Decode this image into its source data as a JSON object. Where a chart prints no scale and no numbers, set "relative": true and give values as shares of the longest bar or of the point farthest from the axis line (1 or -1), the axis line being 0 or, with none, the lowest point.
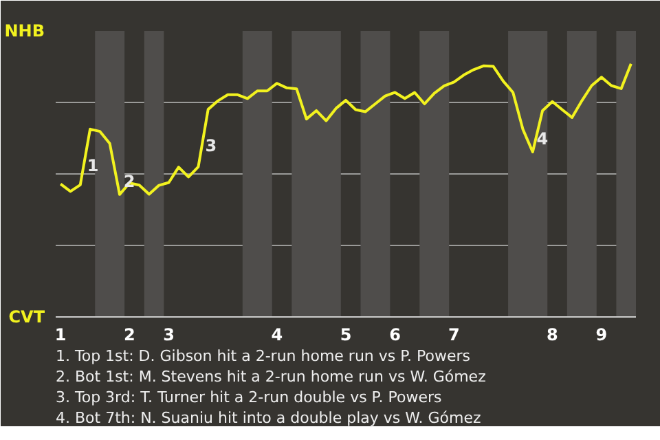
{
  "chart_data": {
    "type": "line",
    "relative": true,
    "categories": [
      "1",
      null,
      null,
      null,
      null,
      null,
      null,
      "2",
      null,
      null,
      null,
      "3",
      null,
      null,
      null,
      null,
      null,
      null,
      null,
      null,
      null,
      null,
      "4",
      null,
      null,
      null,
      null,
      null,
      null,
      "5",
      null,
      null,
      null,
      null,
      "6",
      null,
      null,
      null,
      null,
      null,
      "7",
      null,
      null,
      null,
      null,
      null,
      null,
      null,
      null,
      null,
      "8",
      null,
      null,
      null,
      null,
      "9",
      null,
      null,
      null
    ],
    "series": [
      {
        "color": "#f2f21f",
        "values": [
          0.525,
          0.496,
          0.522,
          0.742,
          0.733,
          0.685,
          0.484,
          0.529,
          0.521,
          0.485,
          0.52,
          0.531,
          0.592,
          0.553,
          0.593,
          0.82,
          0.854,
          0.878,
          0.878,
          0.863,
          0.893,
          0.893,
          0.923,
          0.905,
          0.901,
          0.782,
          0.815,
          0.775,
          0.824,
          0.856,
          0.819,
          0.811,
          0.842,
          0.873,
          0.887,
          0.863,
          0.887,
          0.842,
          0.884,
          0.913,
          0.928,
          0.956,
          0.977,
          0.992,
          0.99,
          0.932,
          0.887,
          0.742,
          0.652,
          0.815,
          0.851,
          0.819,
          0.788,
          0.854,
          0.914,
          0.947,
          0.914,
          0.902,
          1
        ]
      }
    ],
    "grid": "y",
    "annotations": [
      "NHB",
      "CVT",
      "1",
      "2",
      "3",
      "4",
      "1. Top 1st: D. Gibson hit a 2-run home run vs P. Powers",
      "2. Bot 1st: M. Stevens hit a 2-run home run vs W. Gómez",
      "3. Top 3rd: T. Turner hit a 2-run double vs P. Powers",
      "4. Bot 7th: N. Suaniu hit into a double play vs W. Gómez"
    ],
    "marker": "none",
    "line_style": "solid"
  }
}
